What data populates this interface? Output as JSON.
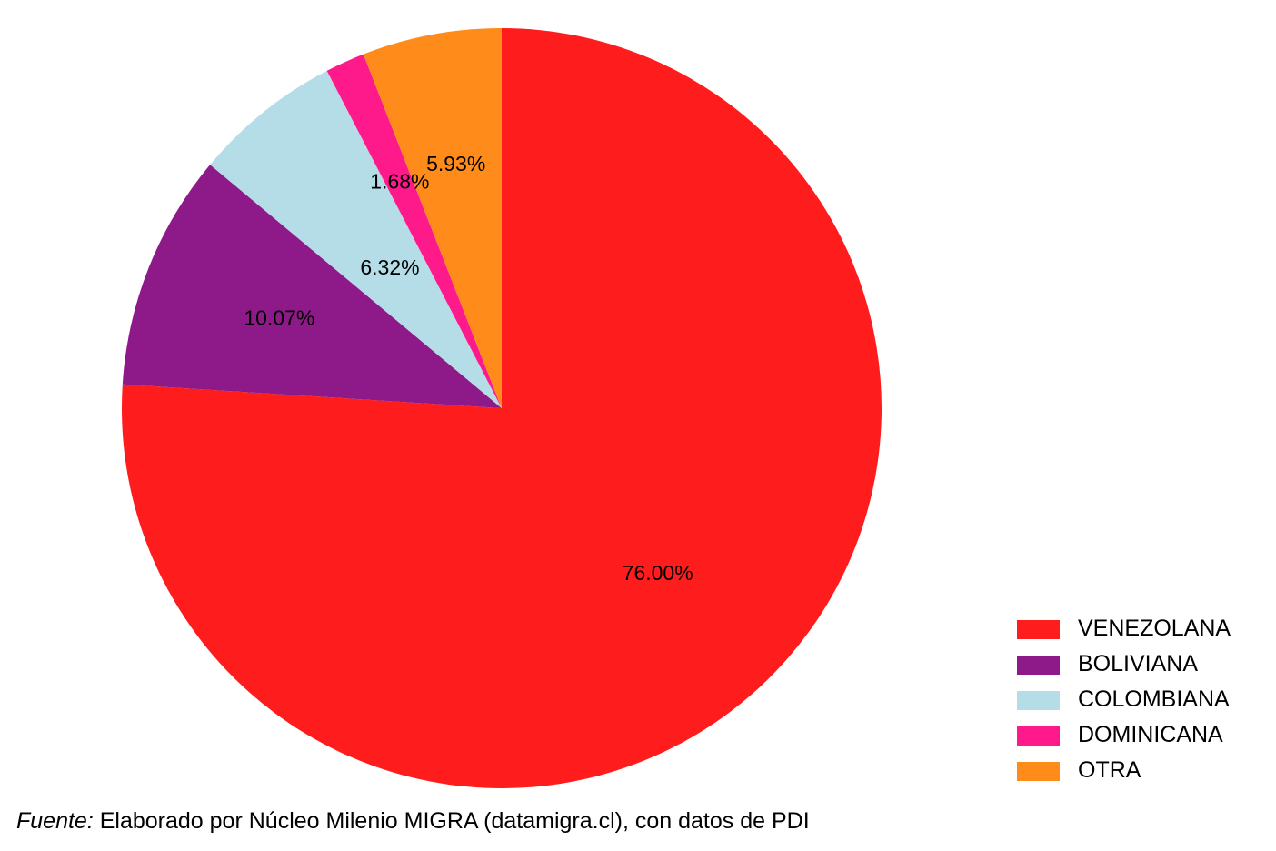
{
  "chart_data": {
    "type": "pie",
    "start": "12 o'clock",
    "direction": "clockwise",
    "categories": [
      "VENEZOLANA",
      "BOLIVIANA",
      "COLOMBIANA",
      "DOMINICANA",
      "OTRA"
    ],
    "values": [
      76.0,
      10.07,
      6.32,
      1.68,
      5.93
    ],
    "labels": [
      "76.00%",
      "10.07%",
      "6.32%",
      "1.68%",
      "5.93%"
    ],
    "colors": [
      "#ff1c1c",
      "#8e1a89",
      "#b5dde8",
      "#ff1a8c",
      "#ff8c1a"
    ],
    "legend": {
      "placement": "bottom-right",
      "items": [
        "VENEZOLANA",
        "BOLIVIANA",
        "COLOMBIANA",
        "DOMINICANA",
        "OTRA"
      ]
    }
  },
  "caption": {
    "lead": "Fuente:",
    "text": "Elaborado por Núcleo Milenio MIGRA (datamigra.cl), con datos de PDI"
  }
}
